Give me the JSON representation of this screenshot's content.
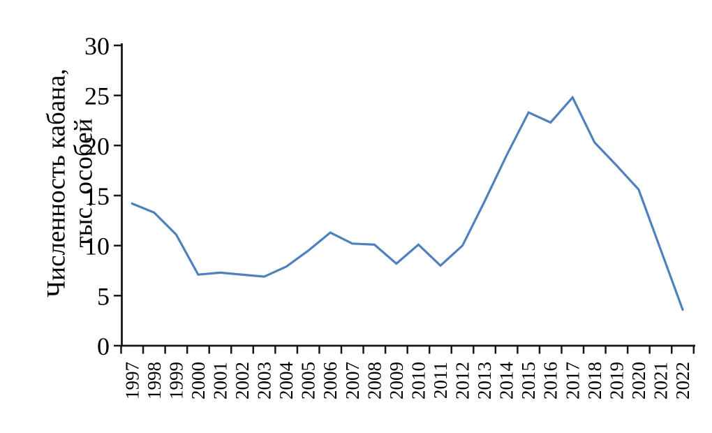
{
  "figure": {
    "background_color": "#ffffff",
    "text_color": "#000000"
  },
  "chart_data": {
    "type": "line",
    "title": "",
    "ylabel": "Численность кабана, тыс. особей",
    "ylabel_lines": [
      "Численность кабана,",
      "тыс. особей"
    ],
    "xlabel": "",
    "categories": [
      "1997",
      "1998",
      "1999",
      "2000",
      "2001",
      "2002",
      "2003",
      "2004",
      "2005",
      "2006",
      "2007",
      "2008",
      "2009",
      "2010",
      "2011",
      "2012",
      "2013",
      "2014",
      "2015",
      "2016",
      "2017",
      "2018",
      "2019",
      "2020",
      "2021",
      "2022"
    ],
    "series": [
      {
        "name": "Численность кабана, тыс. особей",
        "values": [
          14.2,
          13.3,
          11.1,
          7.1,
          7.3,
          7.1,
          6.9,
          7.9,
          9.5,
          11.3,
          10.2,
          10.1,
          8.2,
          10.1,
          8.0,
          10.0,
          14.4,
          19.0,
          23.3,
          22.3,
          24.8,
          20.3,
          18.0,
          15.6,
          9.6,
          3.6
        ],
        "color": "#4f81bd"
      }
    ],
    "ylim": [
      0,
      30
    ],
    "yticks": [
      0,
      5,
      10,
      15,
      20,
      25,
      30
    ],
    "x_tick_rotation": 90,
    "grid": false,
    "legend_position": "none",
    "axis_color": "#161616"
  }
}
